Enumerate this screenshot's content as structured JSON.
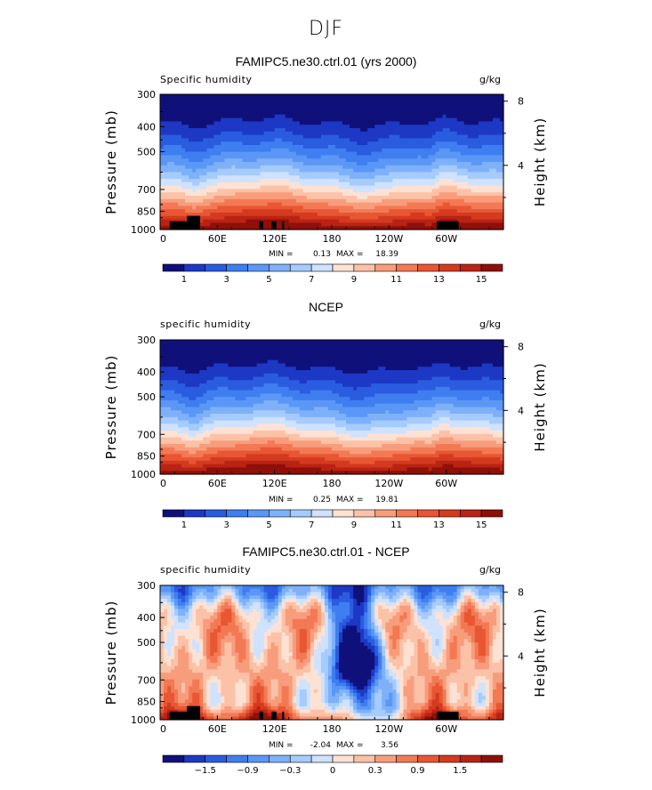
{
  "page": {
    "title": "DJF"
  },
  "chart_data": [
    {
      "type": "heatmap",
      "title": "FAMIPC5.ne30.ctrl.01 (yrs 2000)",
      "variable": "Specific humidity",
      "units": "g/kg",
      "ylabel": "Pressure (mb)",
      "ylabel_right": "Height (km)",
      "x_ticks": [
        "0",
        "60E",
        "120E",
        "180",
        "120W",
        "60W"
      ],
      "y_ticks": [
        300,
        400,
        500,
        700,
        850,
        1000
      ],
      "y_ticks_right": [
        8,
        4
      ],
      "ylim": [
        1000,
        300
      ],
      "stats": {
        "min_label": "MIN =",
        "min": "0.13",
        "max_label": "MAX =",
        "max": "18.39"
      },
      "colorbar_labels": [
        "1",
        "3",
        "5",
        "7",
        "9",
        "11",
        "13",
        "15"
      ],
      "colorbar_colors": [
        "#10107a",
        "#1c38c4",
        "#2a5ce0",
        "#3f7ef0",
        "#5a97f6",
        "#7eb1fa",
        "#a6cbfd",
        "#cfe2fe",
        "#fde2d4",
        "#fbc2a8",
        "#f89d7c",
        "#f37954",
        "#e85633",
        "#d43a1f",
        "#b92314",
        "#8f1009"
      ],
      "contour_interval": 1,
      "topography": true
    },
    {
      "type": "heatmap",
      "title": "NCEP",
      "variable": "specific humidity",
      "units": "g/kg",
      "ylabel": "Pressure (mb)",
      "ylabel_right": "Height (km)",
      "x_ticks": [
        "0",
        "60E",
        "120E",
        "180",
        "120W",
        "60W"
      ],
      "y_ticks": [
        300,
        400,
        500,
        700,
        850,
        1000
      ],
      "y_ticks_right": [
        8,
        4
      ],
      "ylim": [
        1000,
        300
      ],
      "stats": {
        "min_label": "MIN =",
        "min": "0.25",
        "max_label": "MAX =",
        "max": "19.81"
      },
      "colorbar_labels": [
        "1",
        "3",
        "5",
        "7",
        "9",
        "11",
        "13",
        "15"
      ],
      "colorbar_colors": [
        "#10107a",
        "#1c38c4",
        "#2a5ce0",
        "#3f7ef0",
        "#5a97f6",
        "#7eb1fa",
        "#a6cbfd",
        "#cfe2fe",
        "#fde2d4",
        "#fbc2a8",
        "#f89d7c",
        "#f37954",
        "#e85633",
        "#d43a1f",
        "#b92314",
        "#8f1009"
      ],
      "contour_interval": 1,
      "topography": false
    },
    {
      "type": "heatmap",
      "title": "FAMIPC5.ne30.ctrl.01 - NCEP",
      "variable": "specific humidity",
      "units": "g/kg",
      "ylabel": "Pressure (mb)",
      "ylabel_right": "Height (km)",
      "x_ticks": [
        "0",
        "60E",
        "120E",
        "180",
        "120W",
        "60W"
      ],
      "y_ticks": [
        300,
        400,
        500,
        700,
        850,
        1000
      ],
      "y_ticks_right": [
        8,
        4
      ],
      "ylim": [
        1000,
        300
      ],
      "stats": {
        "min_label": "MIN =",
        "min": "-2.04",
        "max_label": "MAX =",
        "max": "3.56"
      },
      "colorbar_labels": [
        "−1.5",
        "−0.9",
        "−0.3",
        "0",
        "0.3",
        "0.9",
        "1.5"
      ],
      "colorbar_colors": [
        "#10107a",
        "#1c38c4",
        "#2a5ce0",
        "#3f7ef0",
        "#5a97f6",
        "#7eb1fa",
        "#a6cbfd",
        "#cfe2fe",
        "#fde2d4",
        "#fbc2a8",
        "#f89d7c",
        "#f37954",
        "#e85633",
        "#d43a1f",
        "#b92314",
        "#8f1009"
      ],
      "contour_interval": 0.3,
      "topography": true
    }
  ]
}
